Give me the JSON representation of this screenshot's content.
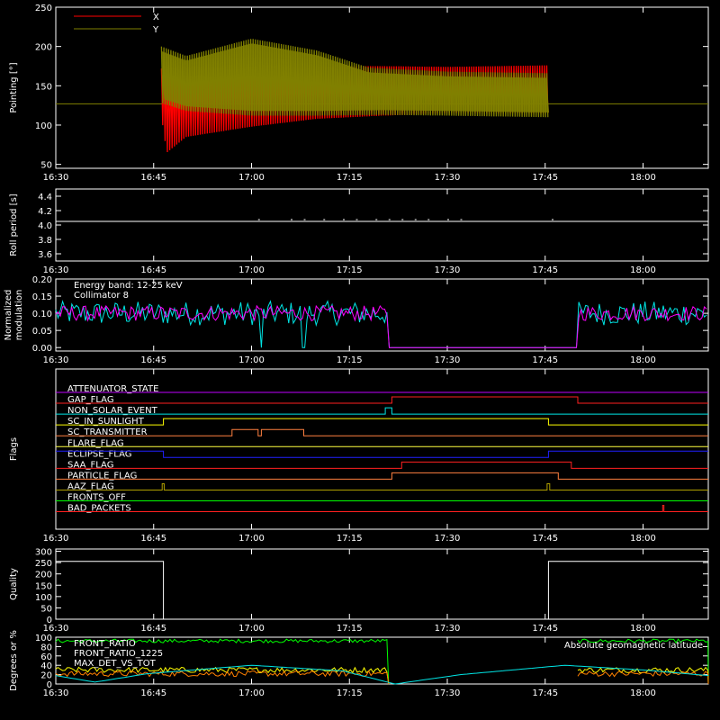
{
  "time_ticks": [
    "16:30",
    "16:45",
    "17:00",
    "17:15",
    "17:30",
    "17:45",
    "18:00"
  ],
  "time_tick_minutes": [
    0,
    15,
    30,
    45,
    60,
    75,
    90
  ],
  "x_range_minutes": [
    0,
    100
  ],
  "chart_data": [
    {
      "type": "line",
      "ylabel": "Pointing [°]",
      "ylim": [
        45,
        250
      ],
      "yticks": [
        "50",
        "100",
        "150",
        "200",
        "250"
      ],
      "ytick_values": [
        50,
        100,
        150,
        200,
        250
      ],
      "legend": [
        {
          "name": "X",
          "color": "#ff0000"
        },
        {
          "name": "Y",
          "color": "#808000"
        }
      ],
      "reference_value": 127,
      "reference_color": "#808000",
      "active_range_minutes": [
        16.2,
        75.6
      ],
      "series": [
        {
          "name": "X",
          "color": "#ff0000",
          "min_envelope": [
            [
              16.2,
              110
            ],
            [
              17,
              65
            ],
            [
              20,
              85
            ],
            [
              30,
              98
            ],
            [
              40,
              108
            ],
            [
              50,
              112
            ],
            [
              60,
              115
            ],
            [
              75.6,
              115
            ]
          ],
          "max_envelope": [
            [
              16.2,
              172
            ],
            [
              20,
              175
            ],
            [
              30,
              178
            ],
            [
              40,
              175
            ],
            [
              50,
              175
            ],
            [
              60,
              174
            ],
            [
              75.6,
              176
            ]
          ]
        },
        {
          "name": "Y",
          "color": "#808000",
          "min_envelope": [
            [
              16.2,
              128
            ],
            [
              20,
              118
            ],
            [
              30,
              112
            ],
            [
              40,
              112
            ],
            [
              50,
              113
            ],
            [
              60,
              112
            ],
            [
              75.6,
              110
            ]
          ],
          "max_envelope": [
            [
              16.2,
              200
            ],
            [
              20,
              188
            ],
            [
              30,
              210
            ],
            [
              40,
              195
            ],
            [
              48,
              173
            ],
            [
              60,
              168
            ],
            [
              75.6,
              166
            ]
          ]
        }
      ]
    },
    {
      "type": "line",
      "ylabel": "Roll period [s]",
      "ylim": [
        3.5,
        4.5
      ],
      "yticks": [
        "3.6",
        "3.8",
        "4.0",
        "4.2",
        "4.4"
      ],
      "ytick_values": [
        3.6,
        3.8,
        4.0,
        4.2,
        4.4
      ],
      "series": [
        {
          "name": "",
          "color": "#ffffff",
          "baseline": 4.05,
          "blips_minutes": [
            31,
            36,
            38,
            41,
            44,
            46,
            49,
            51,
            53,
            55,
            57,
            60,
            62,
            76
          ]
        }
      ]
    },
    {
      "type": "line",
      "ylabel": "Normalized modulation",
      "ylim": [
        -0.01,
        0.2
      ],
      "yticks": [
        "0.00",
        "0.05",
        "0.10",
        "0.15",
        "0.20"
      ],
      "ytick_values": [
        0,
        0.05,
        0.1,
        0.15,
        0.2
      ],
      "legend_text": [
        "Energy band: 12-25 keV",
        "Collimator 8"
      ],
      "legend_colors": [
        "#ffffff",
        "#00e5e5"
      ],
      "series": [
        {
          "name": "",
          "color": "#00e5e5",
          "level": 0.1,
          "segments_minutes": [
            [
              0,
              51
            ],
            [
              80,
              100
            ]
          ],
          "dips_minutes": [
            31.5,
            38
          ]
        },
        {
          "name": "",
          "color": "#ff00ff",
          "level": 0.1,
          "segments_minutes": [
            [
              0,
              51
            ],
            [
              80,
              100
            ]
          ]
        }
      ]
    },
    {
      "type": "table",
      "ylabel": "Flags",
      "flags": [
        {
          "label": "ATTENUATOR_STATE",
          "color": "#c000ff",
          "steps": []
        },
        {
          "label": "GAP_FLAG",
          "color": "#ff2020",
          "steps": [
            [
              51.5,
              1
            ],
            [
              80,
              0
            ]
          ]
        },
        {
          "label": "NON_SOLAR_EVENT",
          "color": "#00e5e5",
          "steps": [
            [
              50.5,
              1
            ],
            [
              51.5,
              0
            ]
          ]
        },
        {
          "label": "SC_IN_SUNLIGHT",
          "color": "#ffff00",
          "steps": [
            [
              16.5,
              1
            ],
            [
              75.5,
              0
            ]
          ]
        },
        {
          "label": "SC_TRANSMITTER",
          "color": "#ff8040",
          "steps": [
            [
              27,
              1
            ],
            [
              31,
              0
            ],
            [
              31.5,
              1
            ],
            [
              38,
              0
            ]
          ]
        },
        {
          "label": "FLARE_FLAG",
          "color": "#ffff40",
          "steps": []
        },
        {
          "label": "ECLIPSE_FLAG",
          "color": "#2020ff",
          "initial": 1,
          "steps": [
            [
              16.5,
              0
            ],
            [
              75.5,
              1
            ]
          ]
        },
        {
          "label": "SAA_FLAG",
          "color": "#ff2020",
          "steps": [
            [
              53,
              1
            ],
            [
              79,
              0
            ]
          ]
        },
        {
          "label": "PARTICLE_FLAG",
          "color": "#ff8040",
          "steps": [
            [
              51.5,
              1
            ],
            [
              77,
              0
            ]
          ]
        },
        {
          "label": "AAZ_FLAG",
          "color": "#b0a000",
          "steps": [
            [
              16.3,
              1
            ],
            [
              16.6,
              0
            ],
            [
              75.3,
              1
            ],
            [
              75.7,
              0
            ]
          ]
        },
        {
          "label": "FRONTS_OFF",
          "color": "#00ff00",
          "steps": []
        },
        {
          "label": "BAD_PACKETS",
          "color": "#ff2020",
          "steps": [
            [
              93,
              1
            ],
            [
              93.2,
              0
            ]
          ]
        }
      ]
    },
    {
      "type": "line",
      "ylabel": "Quality",
      "ylim": [
        0,
        310
      ],
      "yticks": [
        "0",
        "50",
        "100",
        "150",
        "200",
        "250",
        "300"
      ],
      "ytick_values": [
        0,
        50,
        100,
        150,
        200,
        250,
        300
      ],
      "series": [
        {
          "name": "",
          "color": "#ffffff",
          "steps": [
            [
              0,
              255
            ],
            [
              16.5,
              0
            ],
            [
              75.5,
              255
            ],
            [
              100,
              255
            ]
          ]
        }
      ]
    },
    {
      "type": "line",
      "ylabel": "Degrees or %",
      "ylim": [
        0,
        100
      ],
      "yticks": [
        "0",
        "20",
        "40",
        "60",
        "80",
        "100"
      ],
      "ytick_values": [
        0,
        20,
        40,
        60,
        80,
        100
      ],
      "legend_left": [
        {
          "name": "FRONT_RATIO",
          "color": "#00ff00"
        },
        {
          "name": "FRONT_RATIO_1225",
          "color": "#ffff00"
        },
        {
          "name": "MAX_DET_VS_TOT",
          "color": "#ff8000"
        }
      ],
      "legend_right": {
        "name": "Absolute geomagnetic latitude",
        "color": "#00e5e5"
      },
      "series": [
        {
          "name": "FRONT_RATIO",
          "color": "#00ff00",
          "level": 92,
          "segments_minutes": [
            [
              0,
              51
            ],
            [
              80,
              100
            ]
          ]
        },
        {
          "name": "FRONT_RATIO_1225",
          "color": "#ffff00",
          "level": 30,
          "segments_minutes": [
            [
              0,
              51
            ],
            [
              80,
              100
            ]
          ]
        },
        {
          "name": "MAX_DET_VS_TOT",
          "color": "#ff8000",
          "level": 22,
          "segments_minutes": [
            [
              0,
              51
            ],
            [
              80,
              100
            ]
          ]
        },
        {
          "name": "Absolute geomagnetic latitude",
          "color": "#00e5e5",
          "points": [
            [
              0,
              18
            ],
            [
              6,
              4
            ],
            [
              14,
              22
            ],
            [
              30,
              40
            ],
            [
              44,
              28
            ],
            [
              52,
              0
            ],
            [
              62,
              20
            ],
            [
              78,
              40
            ],
            [
              90,
              30
            ],
            [
              100,
              18
            ]
          ]
        }
      ]
    }
  ]
}
